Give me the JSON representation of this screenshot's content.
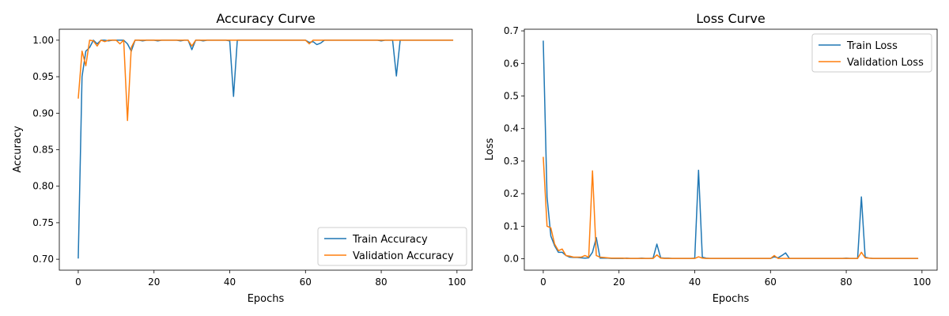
{
  "colors": {
    "train": "#1f77b4",
    "validation": "#ff7f0e"
  },
  "chart_data": [
    {
      "type": "line",
      "title": "Accuracy Curve",
      "xlabel": "Epochs",
      "ylabel": "Accuracy",
      "xlim": [
        -5,
        104
      ],
      "ylim": [
        0.685,
        1.015
      ],
      "xticks": [
        0,
        20,
        40,
        60,
        80,
        100
      ],
      "yticks": [
        0.7,
        0.75,
        0.8,
        0.85,
        0.9,
        0.95,
        1.0
      ],
      "ytick_labels": [
        "0.70",
        "0.75",
        "0.80",
        "0.85",
        "0.90",
        "0.95",
        "1.00"
      ],
      "grid": false,
      "legend_position": "lower-right",
      "series": [
        {
          "name": "Train Accuracy",
          "color_key": "train",
          "x": [
            0,
            1,
            2,
            3,
            4,
            5,
            6,
            7,
            8,
            9,
            10,
            11,
            12,
            13,
            14,
            15,
            16,
            17,
            18,
            19,
            20,
            21,
            22,
            23,
            24,
            25,
            26,
            27,
            28,
            29,
            30,
            31,
            32,
            33,
            34,
            35,
            36,
            37,
            38,
            39,
            40,
            41,
            42,
            43,
            44,
            45,
            46,
            47,
            48,
            49,
            50,
            51,
            52,
            53,
            54,
            55,
            56,
            57,
            58,
            59,
            60,
            61,
            62,
            63,
            64,
            65,
            66,
            67,
            68,
            69,
            70,
            71,
            72,
            73,
            74,
            75,
            76,
            77,
            78,
            79,
            80,
            81,
            82,
            83,
            84,
            85,
            86,
            87,
            88,
            89,
            90,
            91,
            92,
            93,
            94,
            95,
            96,
            97,
            98,
            99
          ],
          "y": [
            0.701,
            0.95,
            0.985,
            0.99,
            1.0,
            0.995,
            1.0,
            1.0,
            0.999,
            1.0,
            1.0,
            1.0,
            1.0,
            0.995,
            0.985,
            1.0,
            1.0,
            0.999,
            1.0,
            1.0,
            1.0,
            0.999,
            1.0,
            1.0,
            1.0,
            1.0,
            1.0,
            0.999,
            1.0,
            1.0,
            0.987,
            1.0,
            1.0,
            0.999,
            1.0,
            1.0,
            1.0,
            1.0,
            1.0,
            1.0,
            0.999,
            0.923,
            1.0,
            1.0,
            1.0,
            1.0,
            1.0,
            1.0,
            1.0,
            1.0,
            1.0,
            1.0,
            1.0,
            1.0,
            1.0,
            1.0,
            1.0,
            1.0,
            1.0,
            1.0,
            1.0,
            0.997,
            0.998,
            0.994,
            0.996,
            1.0,
            1.0,
            1.0,
            1.0,
            1.0,
            1.0,
            1.0,
            1.0,
            1.0,
            1.0,
            1.0,
            1.0,
            1.0,
            1.0,
            1.0,
            0.999,
            1.0,
            1.0,
            1.0,
            0.951,
            1.0,
            1.0,
            1.0,
            1.0,
            1.0,
            1.0,
            1.0,
            1.0,
            1.0,
            1.0,
            1.0,
            1.0,
            1.0,
            1.0,
            1.0
          ]
        },
        {
          "name": "Validation Accuracy",
          "color_key": "validation",
          "x": [
            0,
            1,
            2,
            3,
            4,
            5,
            6,
            7,
            8,
            9,
            10,
            11,
            12,
            13,
            14,
            15,
            16,
            17,
            18,
            19,
            20,
            21,
            22,
            23,
            24,
            25,
            26,
            27,
            28,
            29,
            30,
            31,
            32,
            33,
            34,
            35,
            36,
            37,
            38,
            39,
            40,
            41,
            42,
            43,
            44,
            45,
            46,
            47,
            48,
            49,
            50,
            51,
            52,
            53,
            54,
            55,
            56,
            57,
            58,
            59,
            60,
            61,
            62,
            63,
            64,
            65,
            66,
            67,
            68,
            69,
            70,
            71,
            72,
            73,
            74,
            75,
            76,
            77,
            78,
            79,
            80,
            81,
            82,
            83,
            84,
            85,
            86,
            87,
            88,
            89,
            90,
            91,
            92,
            93,
            94,
            95,
            96,
            97,
            98,
            99
          ],
          "y": [
            0.92,
            0.985,
            0.965,
            1.0,
            0.999,
            0.992,
            1.0,
            0.998,
            1.0,
            1.0,
            1.0,
            0.995,
            1.0,
            0.89,
            0.99,
            1.0,
            1.0,
            1.0,
            1.0,
            1.0,
            1.0,
            1.0,
            1.0,
            1.0,
            1.0,
            1.0,
            1.0,
            1.0,
            1.0,
            1.0,
            0.992,
            1.0,
            1.0,
            1.0,
            1.0,
            1.0,
            1.0,
            1.0,
            1.0,
            1.0,
            1.0,
            1.0,
            1.0,
            1.0,
            1.0,
            1.0,
            1.0,
            1.0,
            1.0,
            1.0,
            1.0,
            1.0,
            1.0,
            1.0,
            1.0,
            1.0,
            1.0,
            1.0,
            1.0,
            1.0,
            1.0,
            0.995,
            1.0,
            1.0,
            1.0,
            1.0,
            1.0,
            1.0,
            1.0,
            1.0,
            1.0,
            1.0,
            1.0,
            1.0,
            1.0,
            1.0,
            1.0,
            1.0,
            1.0,
            1.0,
            1.0,
            1.0,
            1.0,
            1.0,
            1.0,
            1.0,
            1.0,
            1.0,
            1.0,
            1.0,
            1.0,
            1.0,
            1.0,
            1.0,
            1.0,
            1.0,
            1.0,
            1.0,
            1.0,
            1.0
          ]
        }
      ]
    },
    {
      "type": "line",
      "title": "Loss Curve",
      "xlabel": "Epochs",
      "ylabel": "Loss",
      "xlim": [
        -5,
        104
      ],
      "ylim": [
        -0.035,
        0.705
      ],
      "xticks": [
        0,
        20,
        40,
        60,
        80,
        100
      ],
      "yticks": [
        0.0,
        0.1,
        0.2,
        0.3,
        0.4,
        0.5,
        0.6,
        0.7
      ],
      "ytick_labels": [
        "0.0",
        "0.1",
        "0.2",
        "0.3",
        "0.4",
        "0.5",
        "0.6",
        "0.7"
      ],
      "grid": false,
      "legend_position": "upper-right",
      "series": [
        {
          "name": "Train Loss",
          "color_key": "train",
          "x": [
            0,
            1,
            2,
            3,
            4,
            5,
            6,
            7,
            8,
            9,
            10,
            11,
            12,
            13,
            14,
            15,
            16,
            17,
            18,
            19,
            20,
            21,
            22,
            23,
            24,
            25,
            26,
            27,
            28,
            29,
            30,
            31,
            32,
            33,
            34,
            35,
            36,
            37,
            38,
            39,
            40,
            41,
            42,
            43,
            44,
            45,
            46,
            47,
            48,
            49,
            50,
            51,
            52,
            53,
            54,
            55,
            56,
            57,
            58,
            59,
            60,
            61,
            62,
            63,
            64,
            65,
            66,
            67,
            68,
            69,
            70,
            71,
            72,
            73,
            74,
            75,
            76,
            77,
            78,
            79,
            80,
            81,
            82,
            83,
            84,
            85,
            86,
            87,
            88,
            89,
            90,
            91,
            92,
            93,
            94,
            95,
            96,
            97,
            98,
            99
          ],
          "y": [
            0.67,
            0.19,
            0.07,
            0.04,
            0.02,
            0.02,
            0.01,
            0.005,
            0.004,
            0.004,
            0.003,
            0.002,
            0.003,
            0.02,
            0.065,
            0.002,
            0.002,
            0.002,
            0.001,
            0.001,
            0.001,
            0.001,
            0.002,
            0.001,
            0.001,
            0.001,
            0.002,
            0.001,
            0.001,
            0.002,
            0.045,
            0.003,
            0.002,
            0.002,
            0.001,
            0.001,
            0.001,
            0.001,
            0.001,
            0.001,
            0.002,
            0.272,
            0.005,
            0.002,
            0.001,
            0.001,
            0.001,
            0.001,
            0.001,
            0.001,
            0.001,
            0.001,
            0.001,
            0.001,
            0.001,
            0.001,
            0.001,
            0.001,
            0.001,
            0.001,
            0.001,
            0.006,
            0.003,
            0.01,
            0.018,
            0.001,
            0.001,
            0.001,
            0.001,
            0.001,
            0.001,
            0.001,
            0.001,
            0.001,
            0.001,
            0.001,
            0.001,
            0.001,
            0.001,
            0.001,
            0.002,
            0.001,
            0.001,
            0.001,
            0.19,
            0.005,
            0.002,
            0.001,
            0.001,
            0.001,
            0.001,
            0.001,
            0.001,
            0.001,
            0.001,
            0.001,
            0.001,
            0.001,
            0.001,
            0.001
          ]
        },
        {
          "name": "Validation Loss",
          "color_key": "validation",
          "x": [
            0,
            1,
            2,
            3,
            4,
            5,
            6,
            7,
            8,
            9,
            10,
            11,
            12,
            13,
            14,
            15,
            16,
            17,
            18,
            19,
            20,
            21,
            22,
            23,
            24,
            25,
            26,
            27,
            28,
            29,
            30,
            31,
            32,
            33,
            34,
            35,
            36,
            37,
            38,
            39,
            40,
            41,
            42,
            43,
            44,
            45,
            46,
            47,
            48,
            49,
            50,
            51,
            52,
            53,
            54,
            55,
            56,
            57,
            58,
            59,
            60,
            61,
            62,
            63,
            64,
            65,
            66,
            67,
            68,
            69,
            70,
            71,
            72,
            73,
            74,
            75,
            76,
            77,
            78,
            79,
            80,
            81,
            82,
            83,
            84,
            85,
            86,
            87,
            88,
            89,
            90,
            91,
            92,
            93,
            94,
            95,
            96,
            97,
            98,
            99
          ],
          "y": [
            0.313,
            0.1,
            0.095,
            0.045,
            0.025,
            0.03,
            0.01,
            0.008,
            0.005,
            0.005,
            0.005,
            0.01,
            0.005,
            0.27,
            0.01,
            0.005,
            0.004,
            0.003,
            0.002,
            0.002,
            0.002,
            0.002,
            0.001,
            0.001,
            0.001,
            0.001,
            0.001,
            0.001,
            0.001,
            0.001,
            0.012,
            0.002,
            0.001,
            0.001,
            0.001,
            0.001,
            0.001,
            0.001,
            0.001,
            0.001,
            0.001,
            0.006,
            0.002,
            0.001,
            0.001,
            0.001,
            0.001,
            0.001,
            0.001,
            0.001,
            0.001,
            0.001,
            0.001,
            0.001,
            0.001,
            0.001,
            0.001,
            0.001,
            0.001,
            0.001,
            0.001,
            0.01,
            0.001,
            0.001,
            0.001,
            0.001,
            0.001,
            0.001,
            0.001,
            0.001,
            0.001,
            0.001,
            0.001,
            0.001,
            0.001,
            0.001,
            0.001,
            0.001,
            0.001,
            0.001,
            0.001,
            0.001,
            0.001,
            0.001,
            0.02,
            0.003,
            0.002,
            0.001,
            0.001,
            0.001,
            0.001,
            0.001,
            0.001,
            0.001,
            0.001,
            0.001,
            0.001,
            0.001,
            0.001,
            0.001
          ]
        }
      ]
    }
  ]
}
